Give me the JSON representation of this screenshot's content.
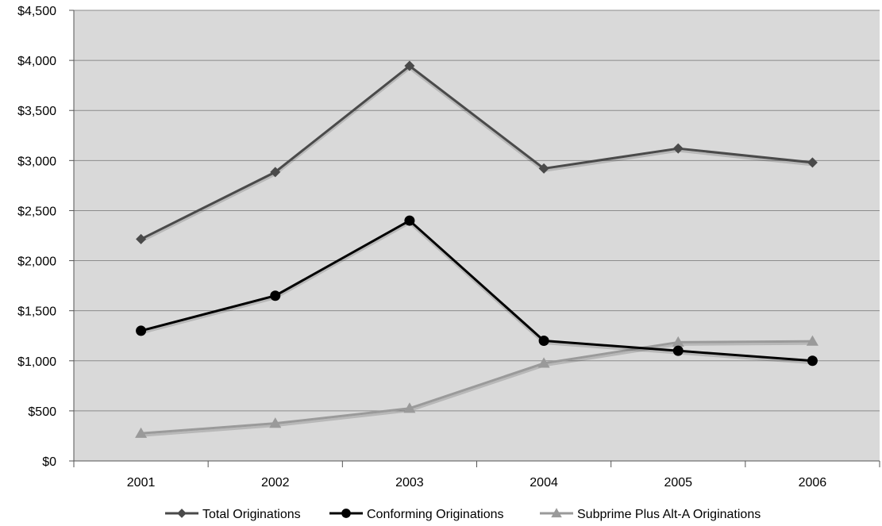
{
  "colors": {
    "plot_background": "#d9d9d9",
    "gridline": "#8c8c8c",
    "total": "#4a4a4a",
    "conforming": "#000000",
    "subprime": "#9a9a9a"
  },
  "chart_data": {
    "type": "line",
    "categories": [
      "2001",
      "2002",
      "2003",
      "2004",
      "2005",
      "2006"
    ],
    "ylim": [
      0,
      4500
    ],
    "y_ticks": [
      0,
      500,
      1000,
      1500,
      2000,
      2500,
      3000,
      3500,
      4000,
      4500
    ],
    "y_tick_labels": [
      "$0",
      "$500",
      "$1,000",
      "$1,500",
      "$2,000",
      "$2,500",
      "$3,000",
      "$3,500",
      "$4,000",
      "$4,500"
    ],
    "grid": true,
    "legend_position": "bottom",
    "series": [
      {
        "name": "Total Originations",
        "marker": "diamond",
        "color": "#4a4a4a",
        "values": [
          2215,
          2885,
          3945,
          2920,
          3120,
          2980
        ]
      },
      {
        "name": "Conforming Originations",
        "marker": "circle",
        "color": "#000000",
        "values": [
          1300,
          1650,
          2400,
          1200,
          1100,
          1000
        ]
      },
      {
        "name": "Subprime Plus Alt-A Originations",
        "marker": "triangle",
        "color": "#9a9a9a",
        "values": [
          275,
          375,
          525,
          975,
          1185,
          1195
        ]
      }
    ]
  }
}
